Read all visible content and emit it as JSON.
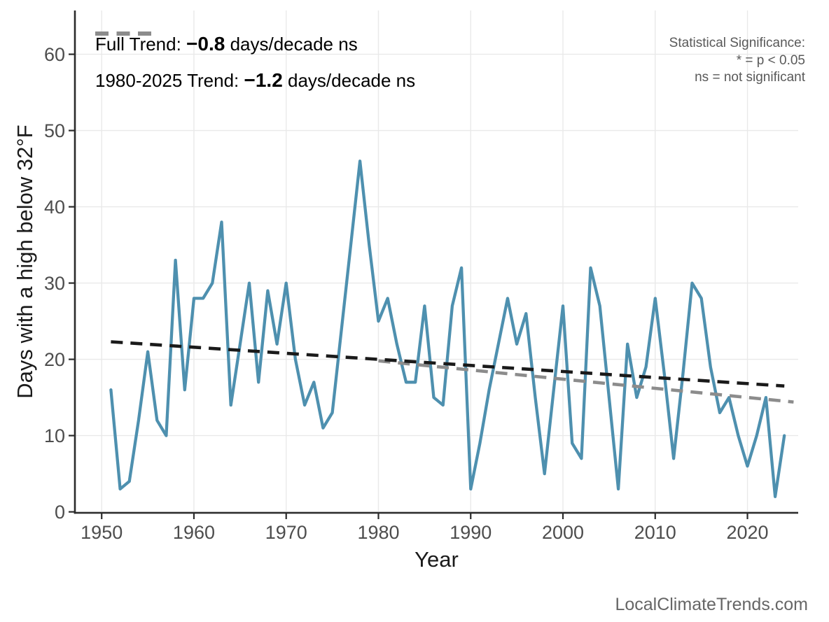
{
  "meta": {
    "watermark": "LocalClimateTrends.com"
  },
  "colors": {
    "series_line": "#4E90AF",
    "trend_full": "#1A1A1A",
    "trend_recent": "#8C8C8C",
    "gridline": "#E9E9E9",
    "axis_line": "#2B2B2B",
    "tick_label": "#4D4D4D",
    "axis_title": "#1A1A1A",
    "note_text": "#595959",
    "watermark_text": "#666666",
    "background": "#FFFFFF"
  },
  "legend": {
    "items": [
      {
        "name": "full-trend",
        "dash_color": "#1A1A1A",
        "prefix": "Full Trend: ",
        "value": "−0.8",
        "suffix": " days/decade ns"
      },
      {
        "name": "recent-trend",
        "dash_color": "#8C8C8C",
        "prefix": "1980-2025 Trend: ",
        "value": "−1.2",
        "suffix": " days/decade ns"
      }
    ]
  },
  "significance_note": {
    "line1": "Statistical Significance:",
    "line2": "* = p < 0.05",
    "line3": "ns = not significant"
  },
  "chart_data": {
    "type": "line",
    "title": "",
    "xlabel": "Year",
    "ylabel": "Days with a high below 32°F",
    "x_ticks": [
      1950,
      1960,
      1970,
      1980,
      1990,
      2000,
      2010,
      2020
    ],
    "y_ticks": [
      0,
      10,
      20,
      30,
      40,
      50,
      60
    ],
    "xlim": [
      1947.1,
      2025.5
    ],
    "ylim": [
      -0.13,
      65.74
    ],
    "grid": true,
    "legend_position": "top-left-inside",
    "series": [
      {
        "name": "days-high-below-32",
        "color": "#4E90AF",
        "x": [
          1951,
          1952,
          1953,
          1954,
          1955,
          1956,
          1957,
          1958,
          1959,
          1960,
          1961,
          1962,
          1963,
          1964,
          1965,
          1966,
          1967,
          1968,
          1969,
          1970,
          1971,
          1972,
          1973,
          1974,
          1975,
          1976,
          1977,
          1978,
          1979,
          1980,
          1981,
          1982,
          1983,
          1984,
          1985,
          1986,
          1987,
          1988,
          1989,
          1990,
          1991,
          1992,
          1993,
          1994,
          1995,
          1996,
          1997,
          1998,
          1999,
          2000,
          2001,
          2002,
          2003,
          2004,
          2005,
          2006,
          2007,
          2008,
          2009,
          2010,
          2011,
          2012,
          2013,
          2014,
          2015,
          2016,
          2017,
          2018,
          2019,
          2020,
          2021,
          2022,
          2023,
          2024
        ],
        "values": [
          16,
          3,
          4,
          12,
          21,
          12,
          10,
          33,
          16,
          28,
          28,
          30,
          38,
          14,
          22,
          30,
          17,
          29,
          22,
          30,
          20,
          14,
          17,
          11,
          13,
          24,
          35,
          46,
          35,
          25,
          28,
          22,
          17,
          17,
          27,
          15,
          14,
          27,
          32,
          3,
          9,
          16,
          22,
          28,
          22,
          26,
          15,
          5,
          16,
          27,
          9,
          7,
          32,
          27,
          15,
          3,
          22,
          15,
          19,
          28,
          18,
          7,
          18,
          30,
          28,
          19,
          13,
          15,
          10,
          6,
          10,
          15,
          2,
          10
        ]
      }
    ],
    "trend_lines": [
      {
        "name": "full-trend",
        "label": "Full Trend",
        "slope_days_per_decade": -0.8,
        "significance": "ns",
        "color": "#1A1A1A",
        "x": [
          1951,
          2024
        ],
        "y": [
          22.3,
          16.5
        ]
      },
      {
        "name": "trend-1980-2025",
        "label": "1980-2025 Trend",
        "slope_days_per_decade": -1.2,
        "significance": "ns",
        "color": "#8C8C8C",
        "x": [
          1980,
          2025
        ],
        "y": [
          19.8,
          14.4
        ]
      }
    ]
  }
}
